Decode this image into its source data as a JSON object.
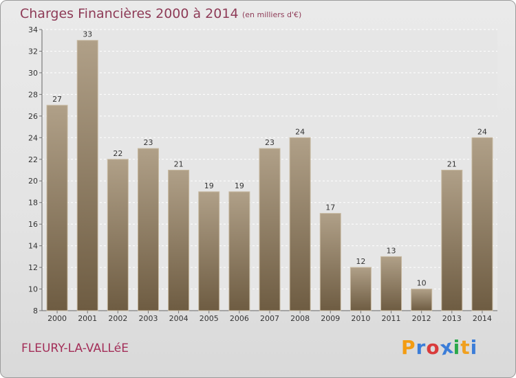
{
  "title": "Charges Financières 2000 à 2014",
  "subtitle": "(en milliers d'€)",
  "city": "FLEURY-LA-VALLéE",
  "logo": {
    "letters": [
      "P",
      "r",
      "o",
      "x",
      "i",
      "t",
      "i"
    ],
    "colors": [
      "#f39c12",
      "#3b7dd8",
      "#d93b3b",
      "#3b7dd8",
      "#2aa84a",
      "#f0a020",
      "#3b7dd8"
    ]
  },
  "colors": {
    "bar_light": "#b0a088",
    "bar_dark": "#6e5c42",
    "title": "#8e3b57"
  },
  "chart_data": {
    "type": "bar",
    "categories": [
      "2000",
      "2001",
      "2002",
      "2003",
      "2004",
      "2005",
      "2006",
      "2007",
      "2008",
      "2009",
      "2010",
      "2011",
      "2012",
      "2013",
      "2014"
    ],
    "values": [
      27,
      33,
      22,
      23,
      21,
      19,
      19,
      23,
      24,
      17,
      12,
      13,
      10,
      21,
      24
    ],
    "ylim": [
      8,
      34
    ],
    "yticks": [
      8,
      10,
      12,
      14,
      16,
      18,
      20,
      22,
      24,
      26,
      28,
      30,
      32,
      34
    ],
    "grid": true
  }
}
